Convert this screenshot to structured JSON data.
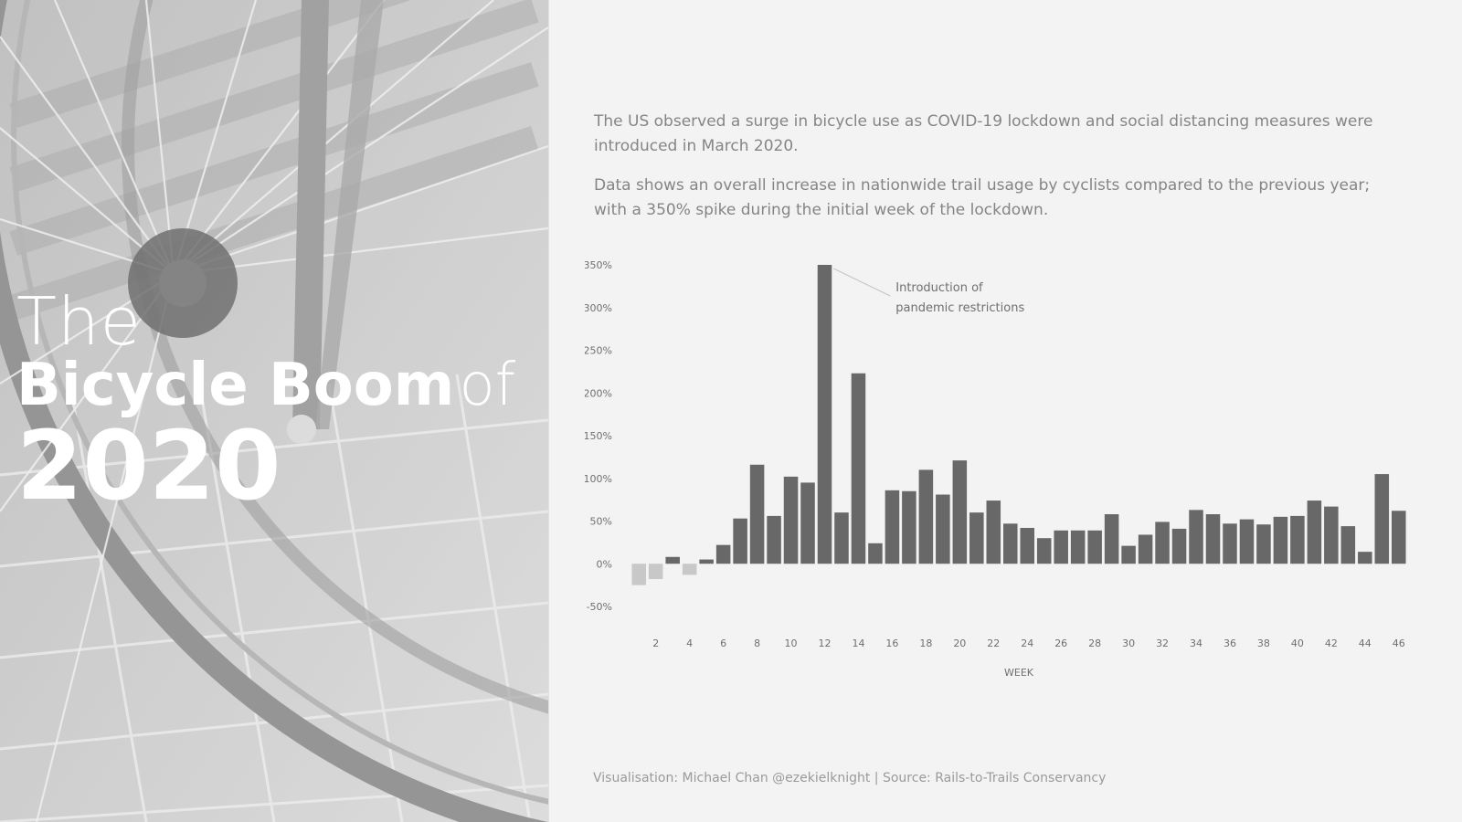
{
  "hero": {
    "title_the": "The",
    "title_bold": "Bicycle Boom",
    "title_of": "of",
    "title_year": "2020"
  },
  "intro": {
    "p1": "The US observed a surge in bicycle use as COVID-19 lockdown and social distancing measures were introduced in March 2020.",
    "p2": "Data shows an overall increase in nationwide trail usage by cyclists compared to the previous year; with a 350% spike during the initial week of the lockdown."
  },
  "footer": "Visualisation: Michael Chan @ezekielknight | Source: Rails-to-Trails Conservancy",
  "colors": {
    "positive_bar": "#686868",
    "negative_bar": "#c8c8c8",
    "text": "#858585",
    "axis_text": "#6f6f6f"
  },
  "chart_data": {
    "type": "bar",
    "xlabel": "WEEK",
    "ylabel": "",
    "ylim": [
      -50,
      350
    ],
    "yticks": [
      "-50%",
      "0%",
      "50%",
      "100%",
      "150%",
      "200%",
      "250%",
      "300%",
      "350%"
    ],
    "ytick_values": [
      -50,
      0,
      50,
      100,
      150,
      200,
      250,
      300,
      350
    ],
    "xtick_labels": [
      "2",
      "4",
      "6",
      "8",
      "10",
      "12",
      "14",
      "16",
      "18",
      "20",
      "22",
      "24",
      "26",
      "28",
      "30",
      "32",
      "34",
      "36",
      "38",
      "40",
      "42",
      "44",
      "46"
    ],
    "categories": [
      "1",
      "2",
      "3",
      "4",
      "5",
      "6",
      "7",
      "8",
      "9",
      "10",
      "11",
      "12",
      "13",
      "14",
      "15",
      "16",
      "17",
      "18",
      "19",
      "20",
      "21",
      "22",
      "23",
      "24",
      "25",
      "26",
      "27",
      "28",
      "29",
      "30",
      "31",
      "32",
      "33",
      "34",
      "35",
      "36",
      "37",
      "38",
      "39",
      "40",
      "41",
      "42",
      "43",
      "44",
      "45",
      "46"
    ],
    "values": [
      -25,
      -18,
      8,
      -13,
      5,
      22,
      53,
      116,
      56,
      102,
      95,
      350,
      60,
      223,
      24,
      86,
      85,
      110,
      81,
      121,
      60,
      74,
      47,
      42,
      30,
      39,
      39,
      39,
      58,
      21,
      34,
      49,
      41,
      63,
      58,
      47,
      52,
      46,
      55,
      56,
      74,
      67,
      44,
      14,
      105,
      62
    ],
    "annotation": {
      "line1": "Introduction of",
      "line2": "pandemic restrictions",
      "week": 12
    },
    "grid": false,
    "legend": "none"
  }
}
